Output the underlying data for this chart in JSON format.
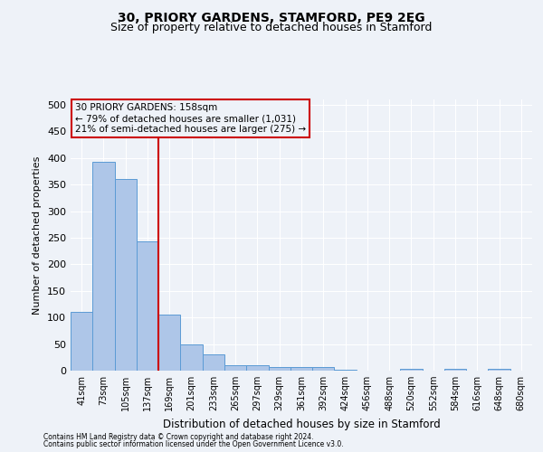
{
  "title1": "30, PRIORY GARDENS, STAMFORD, PE9 2EG",
  "title2": "Size of property relative to detached houses in Stamford",
  "xlabel": "Distribution of detached houses by size in Stamford",
  "ylabel": "Number of detached properties",
  "bar_labels": [
    "41sqm",
    "73sqm",
    "105sqm",
    "137sqm",
    "169sqm",
    "201sqm",
    "233sqm",
    "265sqm",
    "297sqm",
    "329sqm",
    "361sqm",
    "392sqm",
    "424sqm",
    "456sqm",
    "488sqm",
    "520sqm",
    "552sqm",
    "584sqm",
    "616sqm",
    "648sqm",
    "680sqm"
  ],
  "bar_values": [
    110,
    393,
    360,
    243,
    105,
    50,
    30,
    10,
    10,
    6,
    6,
    7,
    2,
    0,
    0,
    4,
    0,
    4,
    0,
    4,
    0
  ],
  "bar_color": "#aec6e8",
  "bar_edgecolor": "#5b9bd5",
  "vline_x_index": 4,
  "vline_color": "#cc0000",
  "annotation_line1": "30 PRIORY GARDENS: 158sqm",
  "annotation_line2": "← 79% of detached houses are smaller (1,031)",
  "annotation_line3": "21% of semi-detached houses are larger (275) →",
  "annotation_box_color": "#cc0000",
  "ylim": [
    0,
    510
  ],
  "yticks": [
    0,
    50,
    100,
    150,
    200,
    250,
    300,
    350,
    400,
    450,
    500
  ],
  "footer1": "Contains HM Land Registry data © Crown copyright and database right 2024.",
  "footer2": "Contains public sector information licensed under the Open Government Licence v3.0.",
  "bg_color": "#eef2f8",
  "grid_color": "#ffffff",
  "title1_fontsize": 10,
  "title2_fontsize": 9
}
